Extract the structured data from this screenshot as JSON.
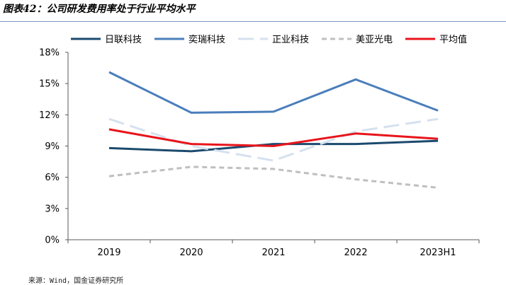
{
  "figure": {
    "title": "图表42：公司研发费用率处于行业平均水平",
    "source": "来源：Wind，国金证券研究所"
  },
  "chart_data": {
    "type": "line",
    "title": "",
    "xlabel": "",
    "ylabel": "",
    "categories": [
      "2019",
      "2020",
      "2021",
      "2022",
      "2023H1"
    ],
    "ylim": [
      0,
      18
    ],
    "yticks": [
      0,
      3,
      6,
      9,
      12,
      15,
      18
    ],
    "ytick_labels": [
      "0%",
      "3%",
      "6%",
      "9%",
      "12%",
      "15%",
      "18%"
    ],
    "legend_position": "top",
    "grid": false,
    "series": [
      {
        "name": "日联科技",
        "values": [
          8.8,
          8.5,
          9.2,
          9.2,
          9.5
        ],
        "color": "#1b4a6e",
        "dash": "solid",
        "width": 3
      },
      {
        "name": "奕瑞科技",
        "values": [
          16.1,
          12.2,
          12.3,
          15.4,
          12.4
        ],
        "color": "#4a7ebb",
        "dash": "solid",
        "width": 3
      },
      {
        "name": "正业科技",
        "values": [
          11.6,
          9.0,
          7.6,
          10.4,
          11.6
        ],
        "color": "#d5e1ef",
        "dash": "long-dash",
        "width": 3
      },
      {
        "name": "美亚光电",
        "values": [
          6.1,
          7.0,
          6.8,
          5.8,
          5.0
        ],
        "color": "#bfbfbf",
        "dash": "short-dash",
        "width": 3
      },
      {
        "name": "平均值",
        "values": [
          10.6,
          9.2,
          9.0,
          10.2,
          9.7
        ],
        "color": "#e8141b",
        "dash": "solid",
        "width": 3
      }
    ]
  }
}
